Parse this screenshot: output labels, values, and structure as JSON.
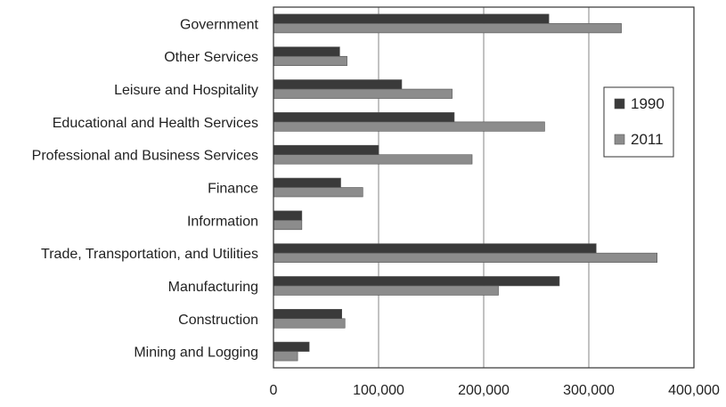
{
  "chart_data": {
    "type": "bar",
    "orientation": "horizontal",
    "title": "",
    "xlabel": "",
    "ylabel": "",
    "categories": [
      "Government",
      "Other Services",
      "Leisure and Hospitality",
      "Educational and Health Services",
      "Professional and Business Services",
      "Finance",
      "Information",
      "Trade, Transportation, and Utilities",
      "Manufacturing",
      "Construction",
      "Mining and Logging"
    ],
    "series": [
      {
        "name": "1990",
        "color": "#3a3a3a",
        "values": [
          262000,
          63000,
          122000,
          172000,
          100000,
          64000,
          27000,
          307000,
          272000,
          65000,
          34000
        ]
      },
      {
        "name": "2011",
        "color": "#8c8c8c",
        "values": [
          331000,
          70000,
          170000,
          258000,
          189000,
          85000,
          27000,
          365000,
          214000,
          68000,
          23000
        ]
      }
    ],
    "xlim": [
      0,
      400000
    ],
    "xticks": [
      0,
      100000,
      200000,
      300000,
      400000
    ],
    "xtick_labels": [
      "0",
      "100,000",
      "200,000",
      "300,000",
      "400,000"
    ],
    "grid": "vertical",
    "legend_position": "right"
  }
}
